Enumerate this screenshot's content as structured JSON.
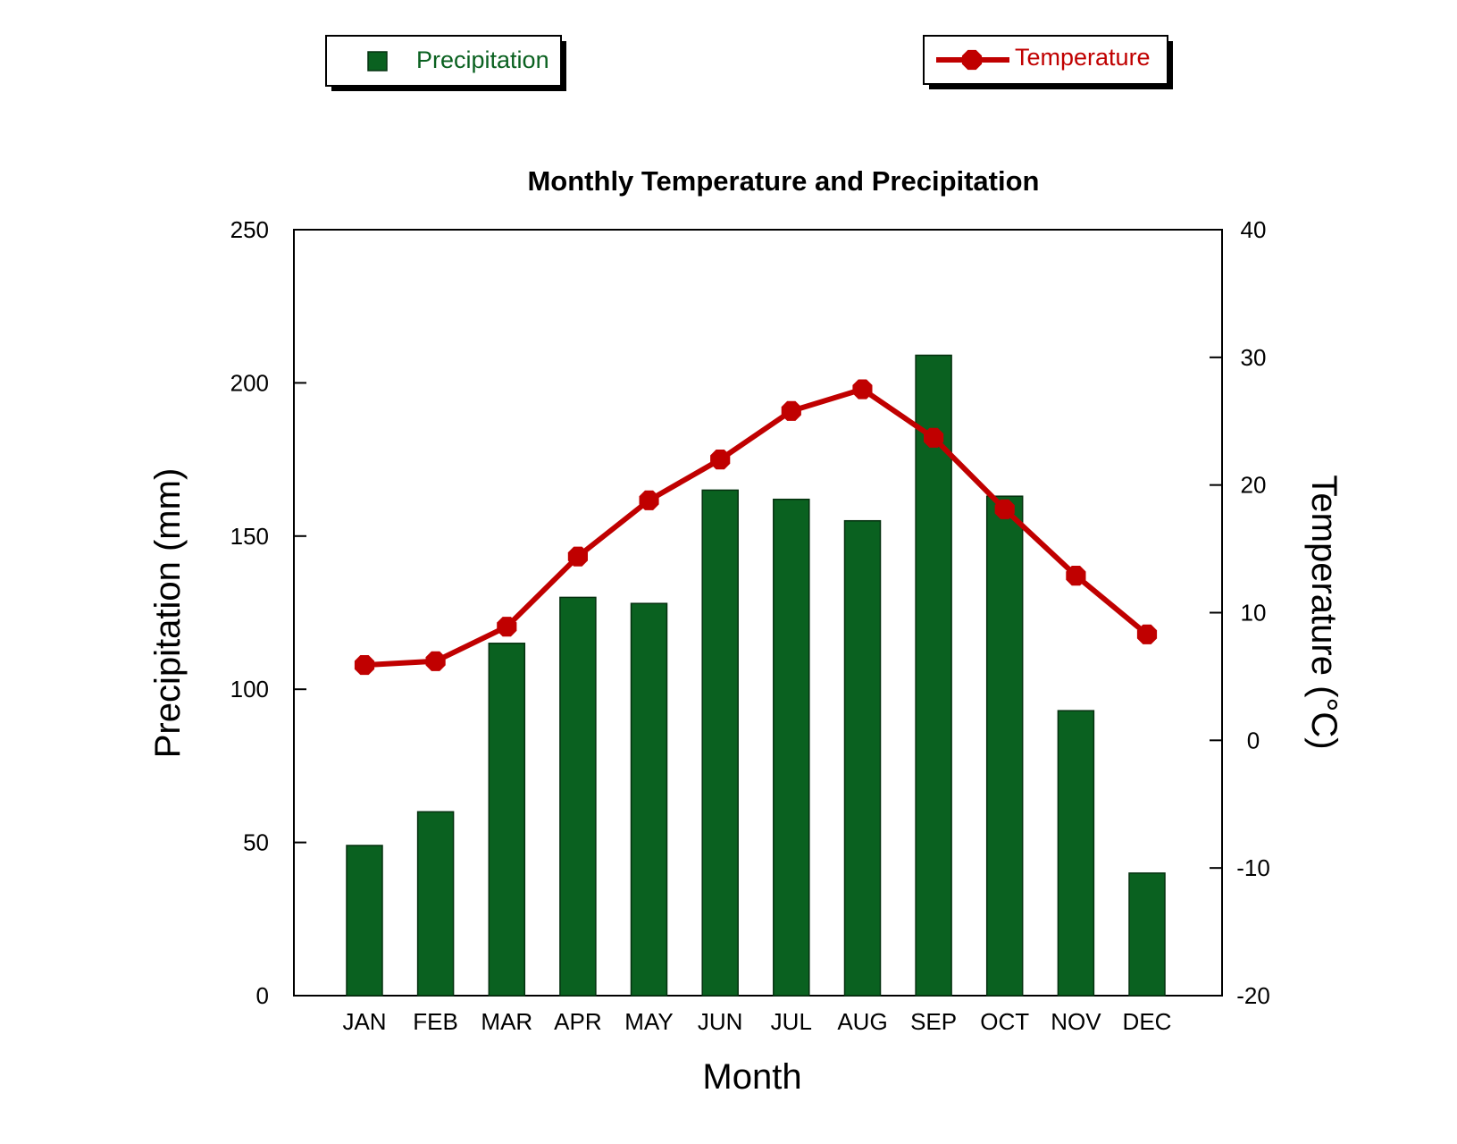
{
  "chart_data": {
    "type": "bar",
    "title": "Monthly Temperature and Precipitation",
    "xlabel": "Month",
    "ylabel": "Precipitation (mm)",
    "y2label": "Temperature (°C)",
    "categories": [
      "JAN",
      "FEB",
      "MAR",
      "APR",
      "MAY",
      "JUN",
      "JUL",
      "AUG",
      "SEP",
      "OCT",
      "NOV",
      "DEC"
    ],
    "ylim": [
      0,
      250
    ],
    "y2lim": [
      -20,
      40
    ],
    "yticks": [
      0,
      50,
      100,
      150,
      200,
      250
    ],
    "y2ticks": [
      -20,
      -10,
      0,
      10,
      20,
      30,
      40
    ],
    "series": [
      {
        "name": "Precipitation",
        "type": "bar",
        "axis": "left",
        "color": "#0a6120",
        "values": [
          49,
          60,
          115,
          130,
          128,
          165,
          162,
          155,
          209,
          163,
          93,
          40
        ]
      },
      {
        "name": "Temperature",
        "type": "line",
        "axis": "right",
        "color": "#c00000",
        "values": [
          5.9,
          6.2,
          8.9,
          14.4,
          18.8,
          22.0,
          25.8,
          27.5,
          23.7,
          18.1,
          12.9,
          8.3
        ]
      }
    ],
    "legend": {
      "placement": "top",
      "precipitation_label": "Precipitation",
      "temperature_label": "Temperature"
    },
    "grid": false
  }
}
